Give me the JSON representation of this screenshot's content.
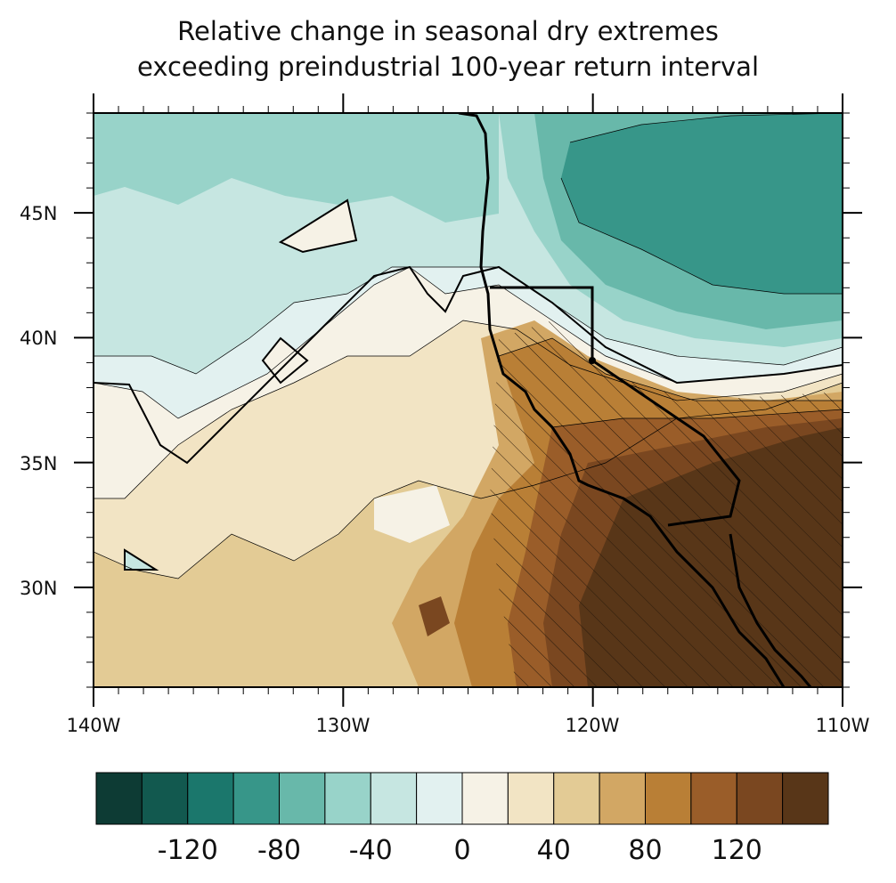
{
  "title": {
    "line1": "Relative change in seasonal dry extremes",
    "line2": "exceeding preindustrial 100-year return interval"
  },
  "axes": {
    "lat_labels": [
      "45N",
      "40N",
      "35N",
      "30N"
    ],
    "lon_labels": [
      "140W",
      "130W",
      "120W",
      "110W"
    ],
    "lon_range": [
      -140,
      -110
    ],
    "lat_range": [
      26,
      49
    ]
  },
  "colorbar": {
    "colors": [
      "#0d3b34",
      "#12594f",
      "#1b776c",
      "#379689",
      "#68b8aa",
      "#98d3c9",
      "#c6e6e1",
      "#e2f1f0",
      "#f6f2e6",
      "#f2e4c4",
      "#e3cb95",
      "#d2a764",
      "#b97f36",
      "#9a5d29",
      "#7a4720",
      "#583618"
    ],
    "labels": [
      "-120",
      "-80",
      "-40",
      "0",
      "40",
      "80",
      "120"
    ],
    "label_color_boundaries": [
      2,
      4,
      6,
      8,
      10,
      12,
      14
    ]
  },
  "map_style": {
    "hatch_color": "#222222",
    "coast_color": "#000000"
  }
}
